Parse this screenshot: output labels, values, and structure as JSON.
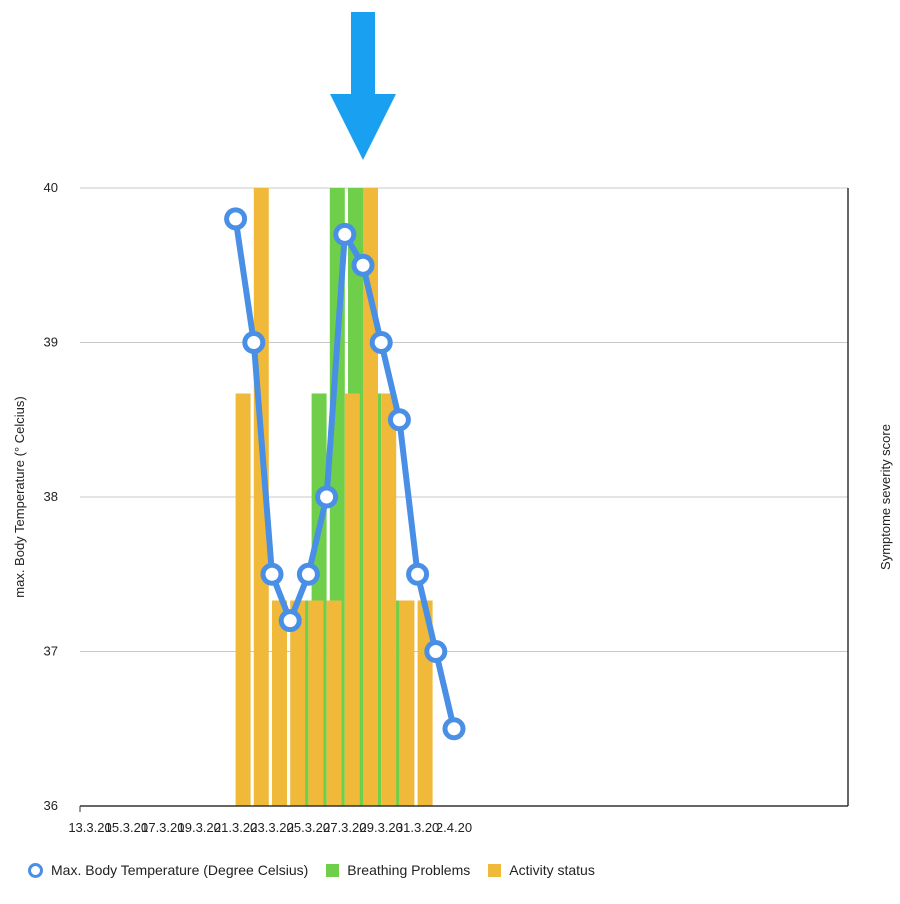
{
  "chart_data": {
    "type": "bar",
    "xlabels": [
      "13.3.20",
      "15.3.20",
      "17.3.20",
      "19.3.20",
      "21.3.20",
      "23.3.20",
      "25.3.20",
      "27.3.20",
      "29.3.20",
      "31.3.20",
      "2.4.20"
    ],
    "ylabel": "max. Body Temperature (° Celcius)",
    "y2label": "Symptome severity score",
    "ylim": [
      36,
      40
    ],
    "yticks": [
      36,
      37,
      38,
      39,
      40
    ],
    "grid": true,
    "legend_position": "bottom",
    "annotation": "arrow pointing down at 28.3.20",
    "series": [
      {
        "name": "Max. Body Temperature (Degree Celsius)",
        "kind": "line",
        "color": "#4a8fe6",
        "points": [
          {
            "x": "21.3.20",
            "y": 39.8
          },
          {
            "x": "22.3.20",
            "y": 39.0
          },
          {
            "x": "23.3.20",
            "y": 37.5
          },
          {
            "x": "24.3.20",
            "y": 37.2
          },
          {
            "x": "25.3.20",
            "y": 37.5
          },
          {
            "x": "26.3.20",
            "y": 38.0
          },
          {
            "x": "27.3.20",
            "y": 39.7
          },
          {
            "x": "28.3.20",
            "y": 39.5
          },
          {
            "x": "29.3.20",
            "y": 39.0
          },
          {
            "x": "30.3.20",
            "y": 38.5
          },
          {
            "x": "31.3.20",
            "y": 37.5
          },
          {
            "x": "1.4.20",
            "y": 37.0
          },
          {
            "x": "2.4.20",
            "y": 36.5
          }
        ]
      },
      {
        "name": "Breathing Problems",
        "kind": "bar",
        "color": "#6fcf4a",
        "points": [
          {
            "x": "25.3.20",
            "y": 37.33
          },
          {
            "x": "26.3.20",
            "y": 38.67
          },
          {
            "x": "27.3.20",
            "y": 40.0
          },
          {
            "x": "28.3.20",
            "y": 40.0
          },
          {
            "x": "29.3.20",
            "y": 38.67
          },
          {
            "x": "30.3.20",
            "y": 37.33
          }
        ]
      },
      {
        "name": "Activity status",
        "kind": "bar",
        "color": "#f0b93a",
        "points": [
          {
            "x": "21.3.20",
            "y": 38.67
          },
          {
            "x": "22.3.20",
            "y": 40.0
          },
          {
            "x": "23.3.20",
            "y": 37.33
          },
          {
            "x": "24.3.20",
            "y": 37.33
          },
          {
            "x": "25.3.20",
            "y": 37.33
          },
          {
            "x": "26.3.20",
            "y": 37.33
          },
          {
            "x": "27.3.20",
            "y": 38.67
          },
          {
            "x": "28.3.20",
            "y": 40.0
          },
          {
            "x": "29.3.20",
            "y": 38.67
          },
          {
            "x": "30.3.20",
            "y": 37.33
          },
          {
            "x": "31.3.20",
            "y": 37.33
          }
        ]
      }
    ]
  },
  "colors": {
    "arrow": "#1aa0f0",
    "grid": "#c8c8c8",
    "axis": "#333333"
  },
  "legend": [
    {
      "label": "Max. Body Temperature (Degree Celsius)",
      "marker": "circle",
      "color": "#4a8fe6"
    },
    {
      "label": "Breathing Problems",
      "marker": "square",
      "color": "#6fcf4a"
    },
    {
      "label": "Activity status",
      "marker": "square",
      "color": "#f0b93a"
    }
  ]
}
